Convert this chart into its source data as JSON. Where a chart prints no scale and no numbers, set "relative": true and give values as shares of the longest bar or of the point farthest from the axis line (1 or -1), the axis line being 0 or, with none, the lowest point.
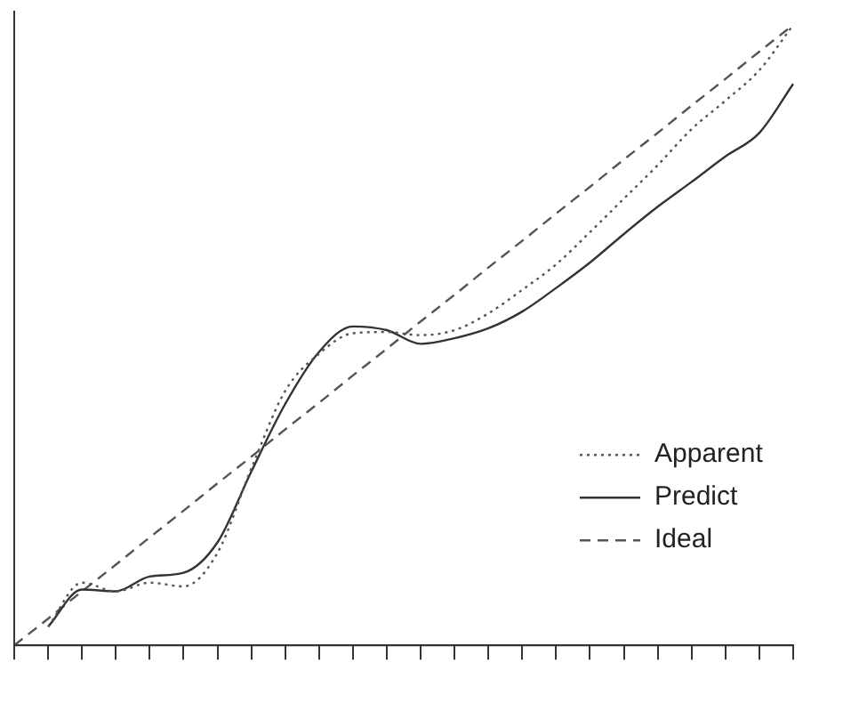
{
  "chart_data": {
    "type": "line",
    "relative": true,
    "grid": false,
    "legend": "bottom right",
    "marker": "none",
    "categories": [
      null,
      null,
      null,
      null,
      null,
      null,
      null,
      null,
      null,
      null,
      null,
      null,
      null,
      null,
      null,
      null,
      null,
      null,
      null,
      null,
      null,
      null,
      null,
      null
    ],
    "series": [
      {
        "name": "Apparent",
        "color": "#555555",
        "line_style": "dotted",
        "values": [
          null,
          0.03,
          0.101,
          0.087,
          0.101,
          0.095,
          0.149,
          0.285,
          0.41,
          0.47,
          0.503,
          0.505,
          0.5,
          0.508,
          0.535,
          0.573,
          0.614,
          0.666,
          0.72,
          0.774,
          0.832,
          0.878,
          0.927,
          1
        ]
      },
      {
        "name": "Predict",
        "color": "#333333",
        "line_style": "solid",
        "values": [
          null,
          0.03,
          0.09,
          0.087,
          0.111,
          0.117,
          0.166,
          0.28,
          0.389,
          0.473,
          0.514,
          0.508,
          0.486,
          0.495,
          0.511,
          0.538,
          0.576,
          0.617,
          0.663,
          0.707,
          0.747,
          0.788,
          0.826,
          0.905
        ]
      },
      {
        "name": "Ideal",
        "color": "#555555",
        "line_style": "dashed",
        "values": [
          0,
          0.043,
          0.087,
          0.13,
          0.174,
          0.217,
          0.261,
          0.304,
          0.348,
          0.391,
          0.435,
          0.478,
          0.522,
          0.565,
          0.609,
          0.652,
          0.696,
          0.739,
          0.783,
          0.826,
          0.87,
          0.913,
          0.957,
          1
        ]
      }
    ]
  }
}
